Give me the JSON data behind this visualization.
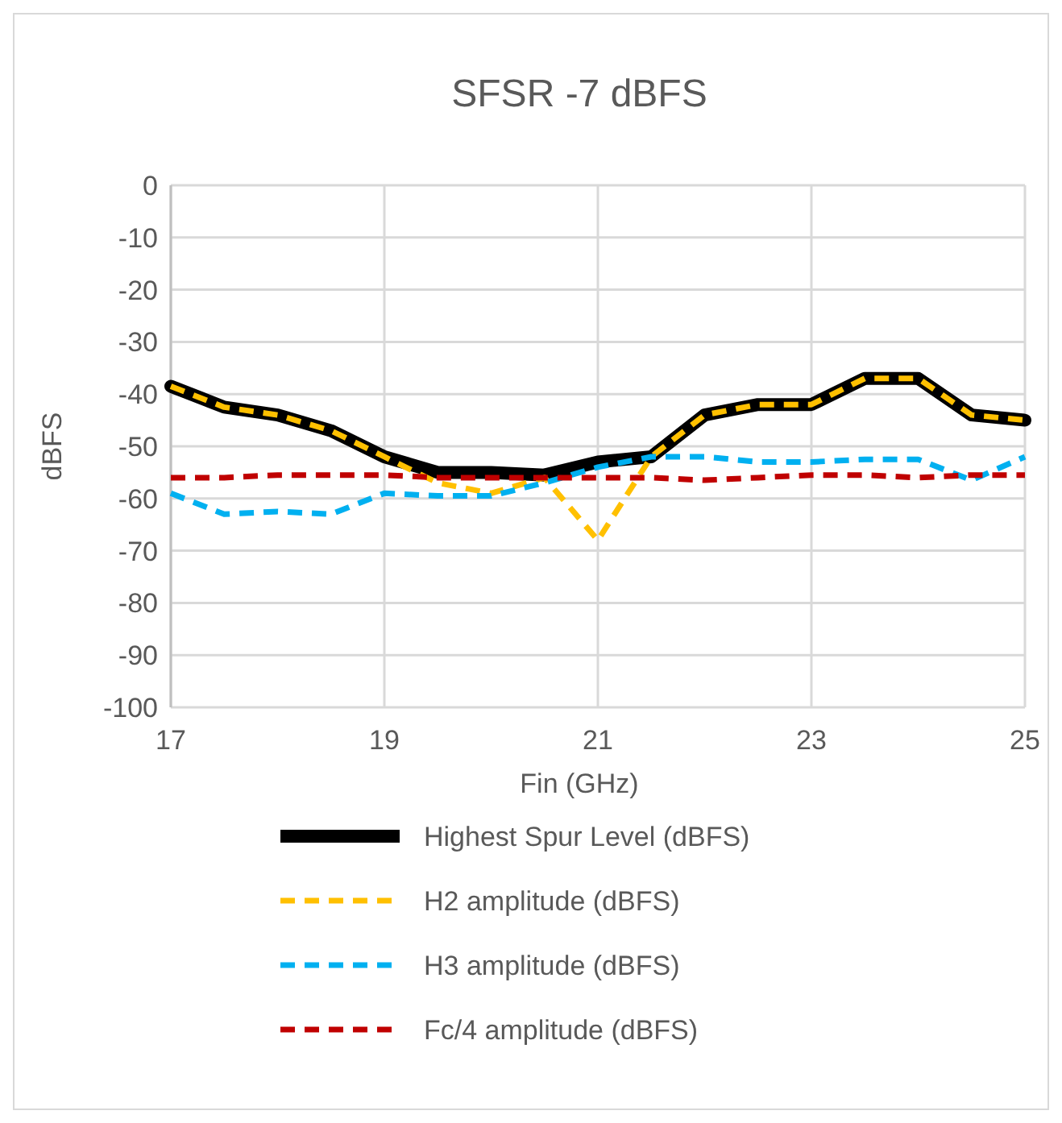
{
  "chart_data": {
    "type": "line",
    "title": "SFSR -7 dBFS",
    "xlabel": "Fin (GHz)",
    "ylabel": "dBFS",
    "x": [
      17,
      17.5,
      18,
      18.5,
      19,
      19.5,
      20,
      20.5,
      21,
      21.5,
      22,
      22.5,
      23,
      23.5,
      24,
      24.5,
      25
    ],
    "xlim": [
      17,
      25
    ],
    "xticks": [
      17,
      19,
      21,
      23,
      25
    ],
    "ylim": [
      -100,
      0
    ],
    "yticks": [
      -100,
      -90,
      -80,
      -70,
      -60,
      -50,
      -40,
      -30,
      -20,
      -10,
      0
    ],
    "grid": true,
    "legend": "bottom",
    "series": [
      {
        "name": "Highest Spur Level (dBFS)",
        "color": "#000000",
        "line_style": "solid",
        "values": [
          -38.5,
          -42.5,
          -44,
          -47,
          -52,
          -55,
          -55,
          -55.5,
          -53,
          -52,
          -44,
          -42,
          -42,
          -37,
          -37,
          -44,
          -45
        ]
      },
      {
        "name": "H2 amplitude (dBFS)",
        "color": "#ffc000",
        "line_style": "dashed",
        "values": [
          -38.5,
          -42.5,
          -44,
          -47,
          -52,
          -57,
          -59,
          -56,
          -68,
          -52,
          -44,
          -42,
          -42,
          -37,
          -37,
          -44,
          -45
        ]
      },
      {
        "name": "H3 amplitude (dBFS)",
        "color": "#00b0f0",
        "line_style": "dashed",
        "values": [
          -59,
          -63,
          -62.5,
          -63,
          -59,
          -59.5,
          -59.5,
          -57,
          -54,
          -52,
          -52,
          -53,
          -53,
          -52.5,
          -52.5,
          -56.5,
          -52
        ]
      },
      {
        "name": "Fc/4 amplitude (dBFS)",
        "color": "#c00000",
        "line_style": "dashed",
        "values": [
          -56,
          -56,
          -55.5,
          -55.5,
          -55.5,
          -56,
          -56,
          -56,
          -56,
          -56,
          -56.5,
          -56,
          -55.5,
          -55.5,
          -56,
          -55.5,
          -55.5
        ]
      }
    ]
  }
}
